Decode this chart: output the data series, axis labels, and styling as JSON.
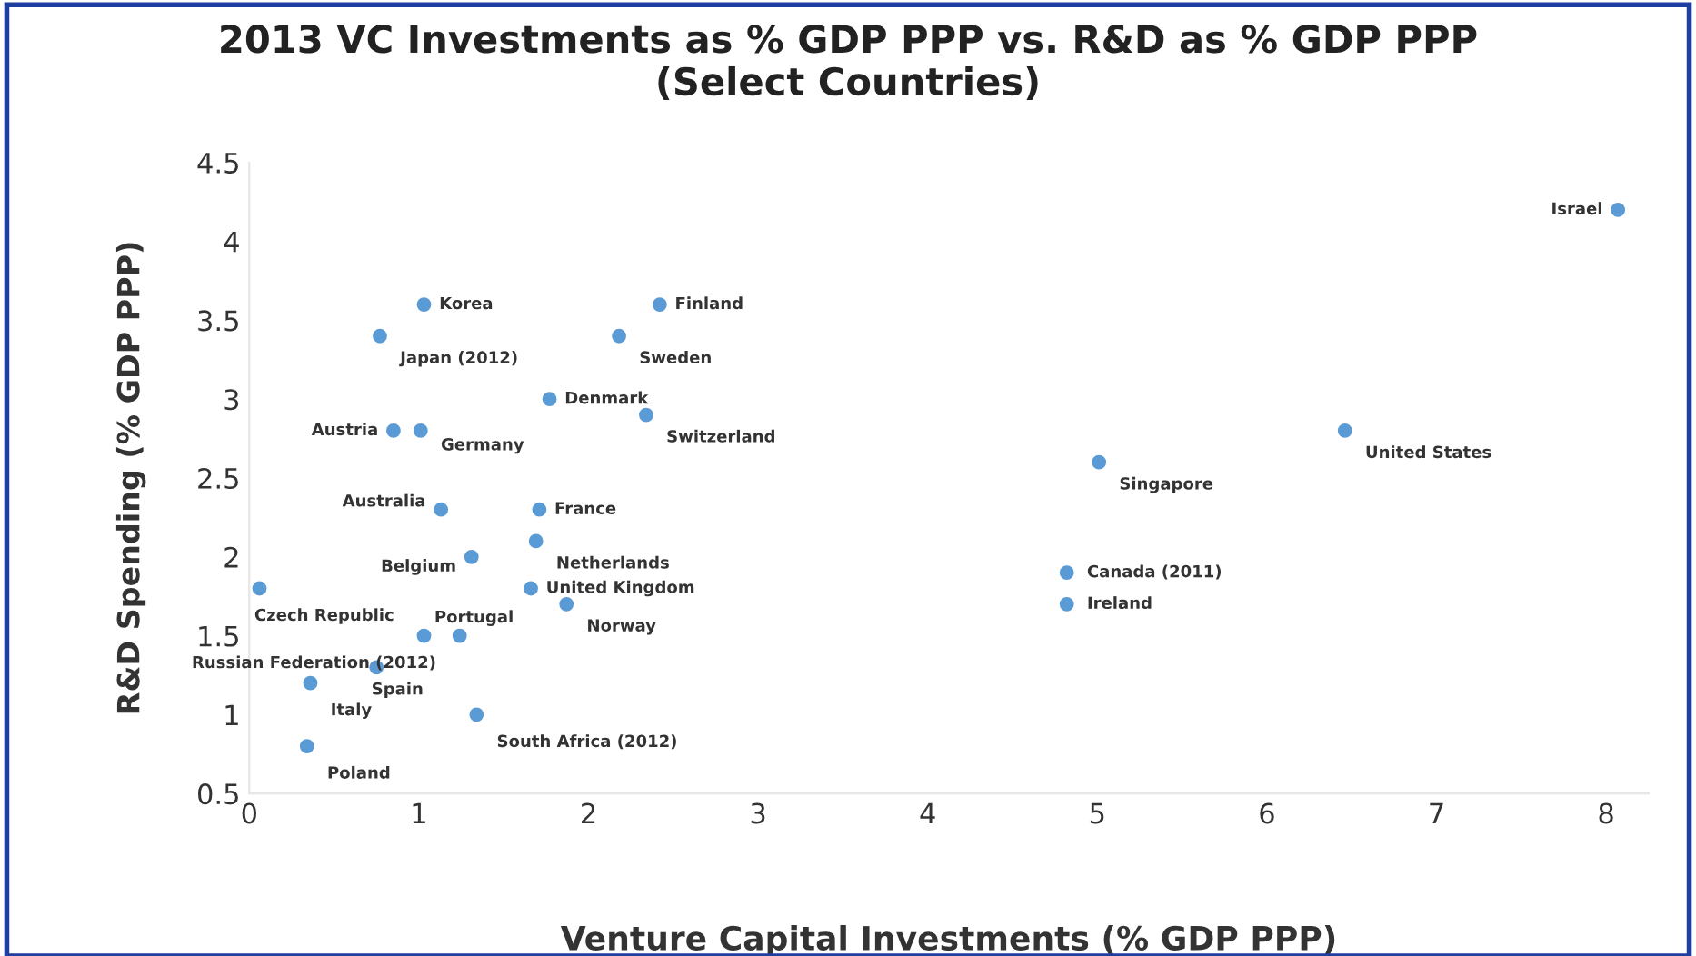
{
  "chart_data": {
    "type": "scatter",
    "title": "2013 VC Investments as % GDP PPP vs. R&D as % GDP PPP\n(Select Countries)",
    "xlabel": "Venture Capital Investments (% GDP PPP)",
    "ylabel": "R&D Spending (% GDP PPP)",
    "x": [
      8.07,
      1.03,
      2.42,
      0.77,
      2.18,
      1.77,
      2.34,
      0.85,
      1.01,
      6.46,
      5.01,
      1.13,
      1.71,
      1.69,
      1.31,
      0.06,
      1.66,
      4.82,
      4.82,
      1.87,
      1.24,
      1.03,
      0.75,
      0.36,
      1.34,
      0.34
    ],
    "series": [
      {
        "color": "#5b9bd5",
        "values": [
          4.2,
          3.6,
          3.6,
          3.4,
          3.4,
          3.0,
          2.9,
          2.8,
          2.8,
          2.8,
          2.6,
          2.3,
          2.3,
          2.1,
          2.0,
          1.8,
          1.8,
          1.9,
          1.7,
          1.7,
          1.5,
          1.5,
          1.3,
          1.2,
          1.0,
          0.8
        ]
      }
    ],
    "annotations": [
      {
        "text": "Israel",
        "x": 8.07,
        "y": 4.2
      },
      {
        "text": "Korea",
        "x": 1.03,
        "y": 3.6
      },
      {
        "text": "Finland",
        "x": 2.42,
        "y": 3.6
      },
      {
        "text": "Japan (2012)",
        "x": 0.77,
        "y": 3.4
      },
      {
        "text": "Sweden",
        "x": 2.18,
        "y": 3.4
      },
      {
        "text": "Denmark",
        "x": 1.77,
        "y": 3.0
      },
      {
        "text": "Switzerland",
        "x": 2.34,
        "y": 2.9
      },
      {
        "text": "Austria",
        "x": 0.85,
        "y": 2.8
      },
      {
        "text": "Germany",
        "x": 1.01,
        "y": 2.8
      },
      {
        "text": "United States",
        "x": 6.46,
        "y": 2.8
      },
      {
        "text": "Singapore",
        "x": 5.01,
        "y": 2.6
      },
      {
        "text": "Australia",
        "x": 1.13,
        "y": 2.3
      },
      {
        "text": "France",
        "x": 1.71,
        "y": 2.3
      },
      {
        "text": "Netherlands",
        "x": 1.69,
        "y": 2.1
      },
      {
        "text": "Belgium",
        "x": 1.31,
        "y": 2.0
      },
      {
        "text": "Czech Republic",
        "x": 0.06,
        "y": 1.8
      },
      {
        "text": "United Kingdom",
        "x": 1.66,
        "y": 1.8
      },
      {
        "text": "Canada (2011)",
        "x": 4.82,
        "y": 1.9
      },
      {
        "text": "Ireland",
        "x": 4.82,
        "y": 1.7
      },
      {
        "text": "Norway",
        "x": 1.87,
        "y": 1.7
      },
      {
        "text": "Portugal",
        "x": 1.24,
        "y": 1.5
      },
      {
        "text": "Russian Federation (2012)",
        "x": 1.03,
        "y": 1.5
      },
      {
        "text": "Spain",
        "x": 0.75,
        "y": 1.3
      },
      {
        "text": "Italy",
        "x": 0.36,
        "y": 1.2
      },
      {
        "text": "South Africa (2012)",
        "x": 1.34,
        "y": 1.0
      },
      {
        "text": "Poland",
        "x": 0.34,
        "y": 0.8
      }
    ],
    "xlim": [
      0,
      8.25
    ],
    "xticks": [
      0,
      1,
      2,
      3,
      4,
      5,
      6,
      7,
      8
    ],
    "ylim": [
      0.5,
      4.5
    ],
    "yticks": [
      0.5,
      1,
      1.5,
      2,
      2.5,
      3,
      3.5,
      4,
      4.5
    ],
    "grid": false,
    "legend": false,
    "marker": "circle"
  }
}
